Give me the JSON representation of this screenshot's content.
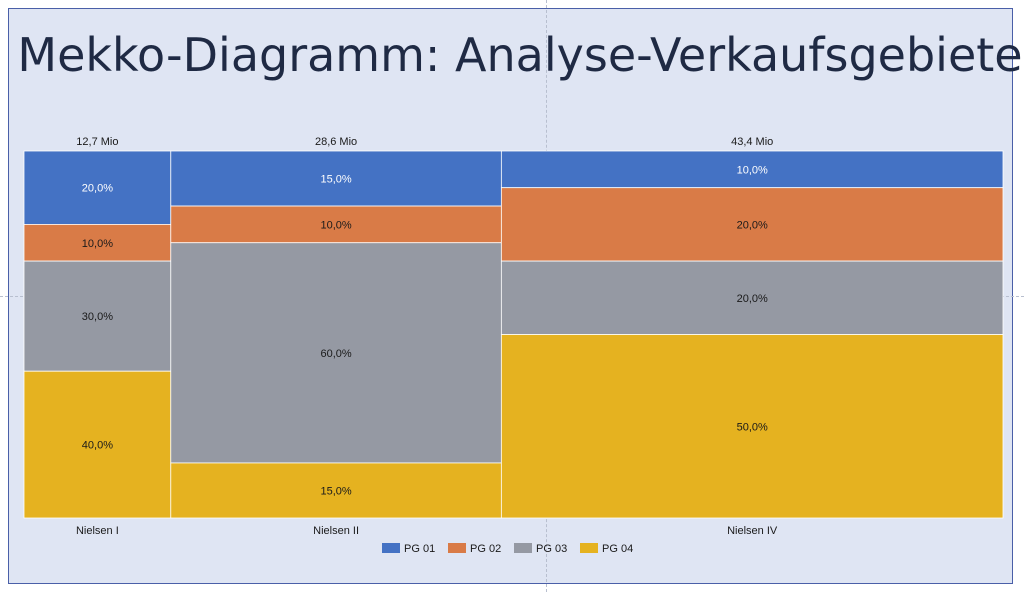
{
  "title": "Mekko-Diagramm: Analyse-Verkaufsgebiete",
  "chart_data": {
    "type": "mekko",
    "title": "Mekko-Diagramm: Analyse-Verkaufsgebiete",
    "categories": [
      "Nielsen I",
      "Nielsen II",
      "Nielsen IV"
    ],
    "category_totals": [
      12.7,
      28.6,
      43.4
    ],
    "category_total_labels": [
      "12,7 Mio",
      "28,6 Mio",
      "43,4 Mio"
    ],
    "series": [
      {
        "name": "PG 01",
        "color": "#4472c4",
        "values": [
          20,
          15,
          10
        ],
        "labels": [
          "20,0%",
          "15,0%",
          "10,0%"
        ],
        "label_color": "#ffffff"
      },
      {
        "name": "PG 02",
        "color": "#d97b47",
        "values": [
          10,
          10,
          20
        ],
        "labels": [
          "10,0%",
          "10,0%",
          "20,0%"
        ],
        "label_color": "#1a1a1a"
      },
      {
        "name": "PG 03",
        "color": "#9599a3",
        "values": [
          30,
          60,
          20
        ],
        "labels": [
          "30,0%",
          "60,0%",
          "20,0%"
        ],
        "label_color": "#1a1a1a"
      },
      {
        "name": "PG 04",
        "color": "#e5b220",
        "values": [
          40,
          15,
          50
        ],
        "labels": [
          "40,0%",
          "15,0%",
          "50,0%"
        ],
        "label_color": "#1a1a1a"
      }
    ],
    "legend_position": "bottom",
    "grid": false
  }
}
